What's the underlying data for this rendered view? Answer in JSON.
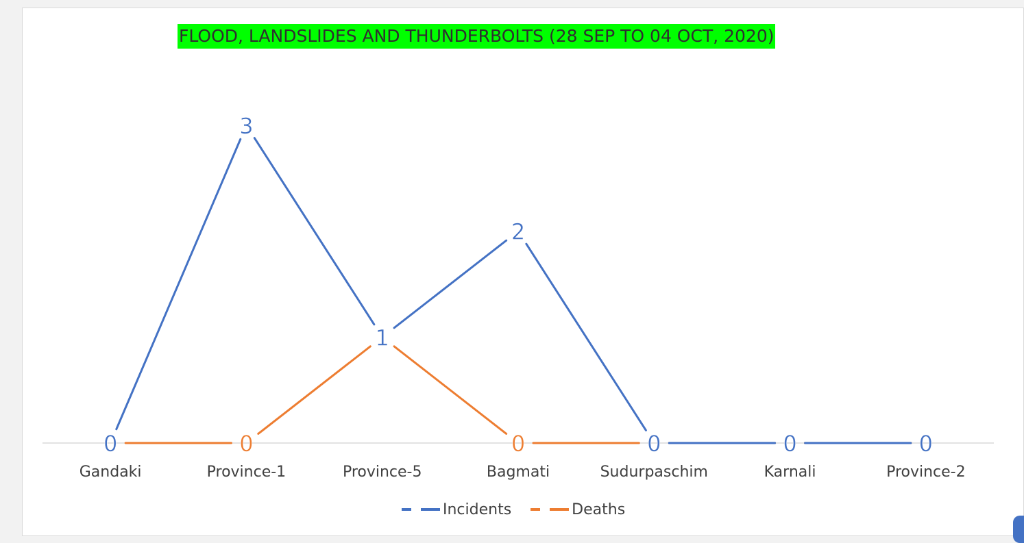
{
  "chart_data": {
    "type": "line",
    "title": "FLOOD, LANDSLIDES AND THUNDERBOLTS (28 SEP TO 04 OCT, 2020)",
    "categories": [
      "Gandaki",
      "Province-1",
      "Province-5",
      "Bagmati",
      "Sudurpaschim",
      "Karnali",
      "Province-2"
    ],
    "series": [
      {
        "name": "Incidents",
        "values": [
          0,
          3,
          1,
          2,
          0,
          0,
          0
        ],
        "color": "#4472c4"
      },
      {
        "name": "Deaths",
        "values": [
          0,
          0,
          1,
          0,
          0,
          0,
          0
        ],
        "color": "#ed7d31"
      }
    ],
    "ylim": [
      0,
      3.3
    ],
    "grid": false,
    "data_labels": true,
    "legend_position": "bottom",
    "title_highlight_color": "#00ff00"
  }
}
